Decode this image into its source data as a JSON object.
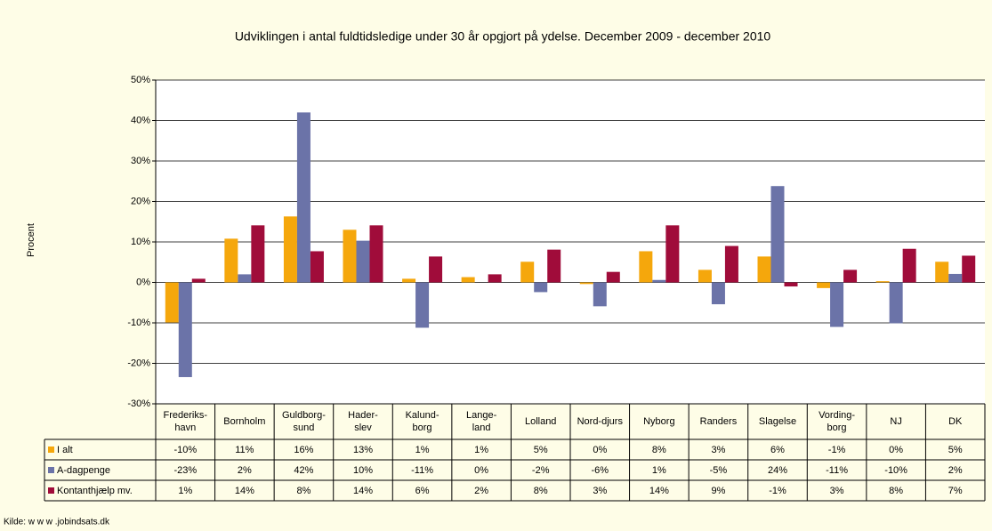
{
  "chart_data": {
    "type": "bar",
    "title": "Udviklingen i antal fuldtidsledige under 30 år opgjort på ydelse. December 2009 - december 2010",
    "y_label": "Procent",
    "source": "Kilde: w w w .jobindsats.dk",
    "categories": [
      "Frederiks-\nhavn",
      "Bornholm",
      "Guldborg-\nsund",
      "Hader-\nslev",
      "Kalund-\nborg",
      "Lange-\nland",
      "Lolland",
      "Nord-djurs",
      "Nyborg",
      "Randers",
      "Slagelse",
      "Vording-\nborg",
      "NJ",
      "DK"
    ],
    "series": [
      {
        "name": "I alt",
        "color": "#f5a70c",
        "values": [
          -9.9,
          10.8,
          16.3,
          13.0,
          0.9,
          1.3,
          5.1,
          -0.4,
          7.7,
          3.1,
          6.4,
          -1.4,
          0.3,
          5.1
        ],
        "value_labels": [
          "-10%",
          "11%",
          "16%",
          "13%",
          "1%",
          "1%",
          "5%",
          "0%",
          "8%",
          "3%",
          "6%",
          "-1%",
          "0%",
          "5%"
        ]
      },
      {
        "name": "A-dagpenge",
        "color": "#6b73a8",
        "values": [
          -23.4,
          2.0,
          42.0,
          10.3,
          -11.2,
          0.0,
          -2.4,
          -5.9,
          0.6,
          -5.4,
          23.8,
          -11.0,
          -10.1,
          2.1
        ],
        "value_labels": [
          "-23%",
          "2%",
          "42%",
          "10%",
          "-11%",
          "0%",
          "-2%",
          "-6%",
          "1%",
          "-5%",
          "24%",
          "-11%",
          "-10%",
          "2%"
        ]
      },
      {
        "name": "Kontanthjælp mv.",
        "color": "#a00c3a",
        "values": [
          0.9,
          14.1,
          7.7,
          14.1,
          6.4,
          2.0,
          8.1,
          2.6,
          14.1,
          9.0,
          -1.0,
          3.1,
          8.3,
          6.6
        ],
        "value_labels": [
          "1%",
          "14%",
          "8%",
          "14%",
          "6%",
          "2%",
          "8%",
          "3%",
          "14%",
          "9%",
          "-1%",
          "3%",
          "8%",
          "7%"
        ]
      }
    ],
    "ylim": [
      -30,
      50
    ],
    "yticks": [
      {
        "value": -30,
        "label": "-30%"
      },
      {
        "value": -20,
        "label": "-20%"
      },
      {
        "value": -10,
        "label": "-10%"
      },
      {
        "value": 0,
        "label": "0%"
      },
      {
        "value": 10,
        "label": "10%"
      },
      {
        "value": 20,
        "label": "20%"
      },
      {
        "value": 30,
        "label": "30%"
      },
      {
        "value": 40,
        "label": "40%"
      },
      {
        "value": 50,
        "label": "50%"
      }
    ],
    "grid": true
  }
}
